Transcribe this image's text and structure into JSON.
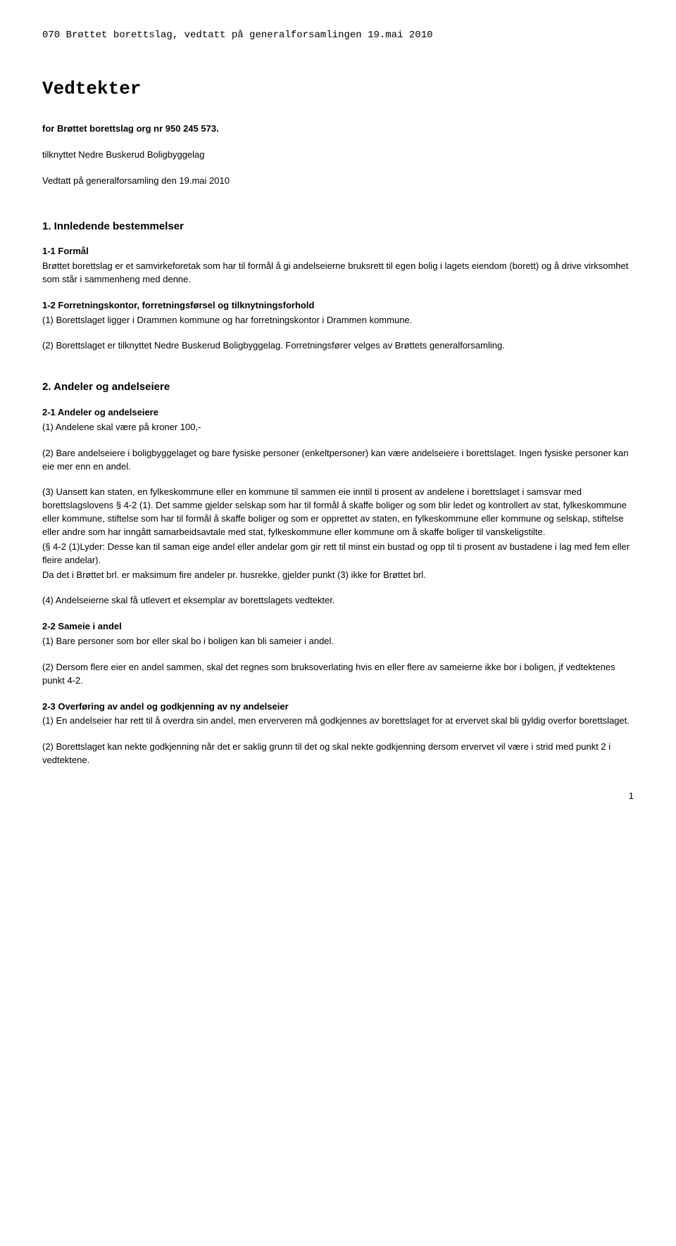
{
  "header": "070 Brøttet borettslag, vedtatt på generalforsamlingen 19.mai 2010",
  "title": "Vedtekter",
  "sub1": "for Brøttet borettslag org nr 950 245 573.",
  "sub2": "tilknyttet Nedre Buskerud Boligbyggelag",
  "sub3": "Vedtatt på generalforsamling den 19.mai 2010",
  "s1": {
    "heading": "1. Innledende bestemmelser",
    "h11": "1-1 Formål",
    "p11": "Brøttet borettslag er et samvirkeforetak som har til formål å gi andelseierne bruksrett til egen bolig i lagets eiendom (borett) og å drive virksomhet som står i sammenheng med denne.",
    "h12": "1-2 Forretningskontor, forretningsførsel og tilknytningsforhold",
    "p12a": "(1) Borettslaget ligger i Drammen kommune og har forretningskontor i Drammen kommune.",
    "p12b": "(2) Borettslaget er tilknyttet Nedre Buskerud Boligbyggelag. Forretningsfører velges av Brøttets generalforsamling."
  },
  "s2": {
    "heading": "2. Andeler og andelseiere",
    "h21": "2-1 Andeler og andelseiere",
    "p21a": "(1) Andelene skal være på kroner 100,-",
    "p21b": "(2) Bare andelseiere i boligbyggelaget og bare fysiske personer (enkeltpersoner) kan være andelseiere i borettslaget. Ingen fysiske personer kan eie mer enn en andel.",
    "p21c": "(3) Uansett kan staten, en fylkeskommune eller en kommune til sammen eie inntil ti prosent av andelene i borettslaget i samsvar med borettslagslovens § 4-2 (1). Det samme gjelder selskap som har til formål å skaffe boliger og som blir ledet og kontrollert av stat, fylkeskommune eller kommune, stiftelse som har til formål å skaffe boliger og som er opprettet av staten, en fylkeskommune eller kommune og selskap, stiftelse eller andre som har inngått samarbeidsavtale med stat, fylkeskommune eller kommune om å skaffe boliger til vanskeligstilte.",
    "p21d": "(§ 4-2 (1)Lyder: Desse kan til saman eige andel eller andelar gom gir rett til minst ein bustad og opp til ti prosent av bustadene i lag med fem eller fleire andelar).",
    "p21e": "Da det i Brøttet brl. er maksimum fire andeler pr. husrekke, gjelder punkt (3) ikke for Brøttet brl.",
    "p21f": "(4) Andelseierne skal få utlevert et eksemplar av borettslagets vedtekter.",
    "h22": "2-2 Sameie i andel",
    "p22a": "(1) Bare personer som bor eller skal bo i boligen kan bli sameier i andel.",
    "p22b": "(2) Dersom flere eier en andel sammen, skal det regnes som bruksoverlating hvis en eller flere av sameierne ikke bor i boligen, jf vedtektenes punkt 4-2.",
    "h23": "2-3 Overføring av andel og godkjenning av ny andelseier",
    "p23a": "(1) En andelseier har rett til å overdra sin andel, men erververen må godkjennes av borettslaget for at ervervet skal bli gyldig overfor borettslaget.",
    "p23b": "(2) Borettslaget kan nekte godkjenning når det er saklig grunn til det og skal nekte godkjenning dersom ervervet vil være i strid med punkt 2 i vedtektene."
  },
  "pageNum": "1"
}
